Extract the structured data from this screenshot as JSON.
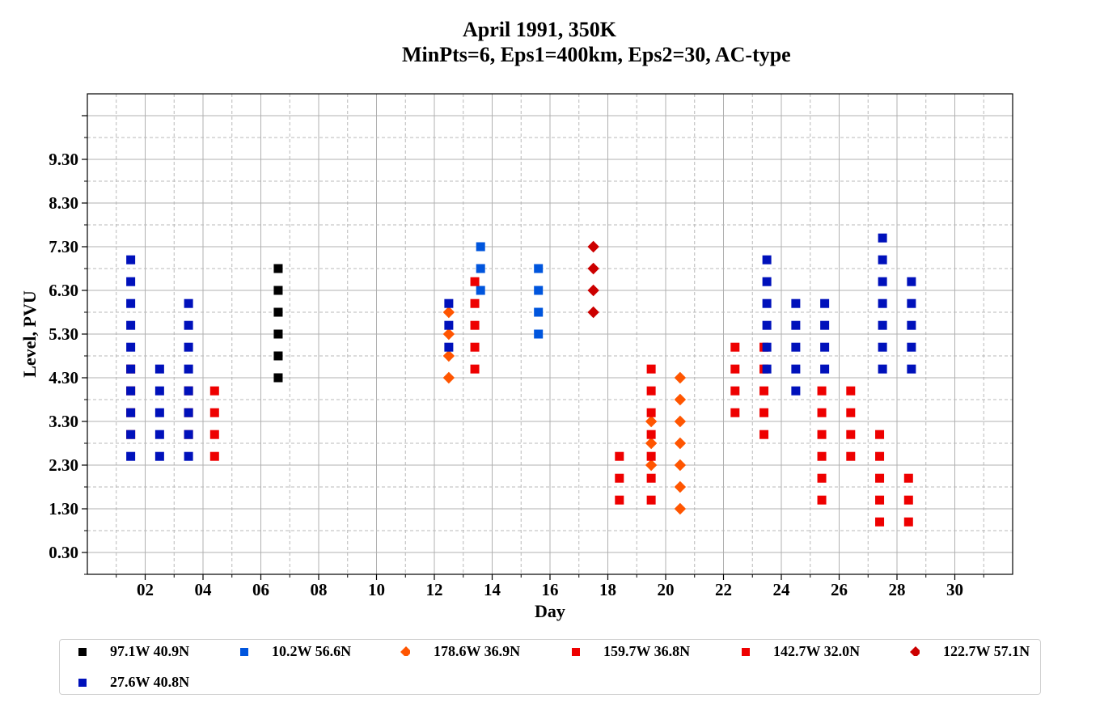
{
  "title_line1": "April 1991, 350K",
  "title_line2": "MinPts=6, Eps1=400km, Eps2=30, AC-type",
  "chart_data": {
    "type": "scatter",
    "xlabel": "Day",
    "ylabel": "Level, PVU",
    "xlim": [
      0,
      32
    ],
    "ylim": [
      -0.2,
      10.8
    ],
    "xticks": [
      2,
      4,
      6,
      8,
      10,
      12,
      14,
      16,
      18,
      20,
      22,
      24,
      26,
      28,
      30
    ],
    "xtick_labels": [
      "02",
      "04",
      "06",
      "08",
      "10",
      "12",
      "14",
      "16",
      "18",
      "20",
      "22",
      "24",
      "26",
      "28",
      "30"
    ],
    "yticks": [
      0.3,
      1.3,
      2.3,
      3.3,
      4.3,
      5.3,
      6.3,
      7.3,
      8.3,
      9.3
    ],
    "ytick_labels": [
      "0.30",
      "1.30",
      "2.30",
      "3.30",
      "4.30",
      "5.30",
      "6.30",
      "7.30",
      "8.30",
      "9.30"
    ],
    "grid": true,
    "legend_position": "bottom",
    "series": [
      {
        "name": "97.1W 40.9N",
        "marker": "square",
        "color": "#000000",
        "points": [
          [
            6.6,
            4.3
          ],
          [
            6.6,
            4.8
          ],
          [
            6.6,
            5.3
          ],
          [
            6.6,
            5.8
          ],
          [
            6.6,
            6.3
          ],
          [
            6.6,
            6.8
          ]
        ]
      },
      {
        "name": "10.2W 56.6N",
        "marker": "square",
        "color": "#0055dd",
        "points": [
          [
            13.6,
            6.3
          ],
          [
            13.6,
            6.8
          ],
          [
            13.6,
            7.3
          ],
          [
            15.6,
            5.3
          ],
          [
            15.6,
            5.8
          ],
          [
            15.6,
            6.3
          ],
          [
            15.6,
            6.8
          ]
        ]
      },
      {
        "name": "178.6W 36.9N",
        "marker": "diamond",
        "color": "#ff5500",
        "points": [
          [
            12.5,
            4.3
          ],
          [
            12.5,
            4.8
          ],
          [
            12.5,
            5.3
          ],
          [
            12.5,
            5.8
          ],
          [
            19.5,
            2.3
          ],
          [
            19.5,
            2.8
          ],
          [
            19.5,
            3.3
          ],
          [
            20.5,
            1.3
          ],
          [
            20.5,
            1.8
          ],
          [
            20.5,
            2.3
          ],
          [
            20.5,
            2.8
          ],
          [
            20.5,
            3.3
          ],
          [
            20.5,
            3.8
          ],
          [
            20.5,
            4.3
          ]
        ]
      },
      {
        "name": "159.7W 36.8N",
        "marker": "square",
        "color": "#ee0000",
        "points": [
          [
            1.5,
            3.0
          ],
          [
            1.5,
            3.5
          ],
          [
            1.5,
            4.0
          ],
          [
            1.5,
            4.5
          ],
          [
            3.5,
            3.0
          ],
          [
            3.5,
            3.5
          ],
          [
            3.5,
            4.0
          ],
          [
            4.4,
            2.5
          ],
          [
            4.4,
            3.0
          ],
          [
            4.4,
            3.5
          ],
          [
            4.4,
            4.0
          ],
          [
            13.4,
            4.5
          ],
          [
            13.4,
            5.0
          ],
          [
            13.4,
            5.5
          ],
          [
            13.4,
            6.0
          ],
          [
            13.4,
            6.5
          ],
          [
            18.4,
            1.5
          ],
          [
            18.4,
            2.0
          ],
          [
            18.4,
            2.5
          ],
          [
            19.5,
            1.5
          ],
          [
            19.5,
            2.0
          ],
          [
            19.5,
            2.5
          ],
          [
            19.5,
            3.0
          ],
          [
            19.5,
            3.5
          ],
          [
            19.5,
            4.0
          ],
          [
            19.5,
            4.5
          ],
          [
            22.4,
            3.5
          ],
          [
            22.4,
            4.0
          ],
          [
            22.4,
            4.5
          ],
          [
            22.4,
            5.0
          ]
        ]
      },
      {
        "name": "142.7W 32.0N",
        "marker": "square",
        "color": "#ee0000",
        "points": [
          [
            23.4,
            3.0
          ],
          [
            23.4,
            3.5
          ],
          [
            23.4,
            4.0
          ],
          [
            23.4,
            4.5
          ],
          [
            23.4,
            5.0
          ],
          [
            25.4,
            1.5
          ],
          [
            25.4,
            2.0
          ],
          [
            25.4,
            2.5
          ],
          [
            25.4,
            3.0
          ],
          [
            25.4,
            3.5
          ],
          [
            25.4,
            4.0
          ],
          [
            26.4,
            2.5
          ],
          [
            26.4,
            3.0
          ],
          [
            26.4,
            3.5
          ],
          [
            26.4,
            4.0
          ],
          [
            27.4,
            1.0
          ],
          [
            27.4,
            1.5
          ],
          [
            27.4,
            2.0
          ],
          [
            27.4,
            2.5
          ],
          [
            27.4,
            3.0
          ],
          [
            28.4,
            1.0
          ],
          [
            28.4,
            1.5
          ],
          [
            28.4,
            2.0
          ]
        ]
      },
      {
        "name": "122.7W 57.1N",
        "marker": "diamond",
        "color": "#cc0000",
        "points": [
          [
            17.5,
            5.8
          ],
          [
            17.5,
            6.3
          ],
          [
            17.5,
            6.8
          ],
          [
            17.5,
            7.3
          ]
        ]
      },
      {
        "name": "27.6W 40.8N",
        "marker": "square",
        "color": "#0011bb",
        "points": [
          [
            1.5,
            2.5
          ],
          [
            1.5,
            3.0
          ],
          [
            1.5,
            3.5
          ],
          [
            1.5,
            4.0
          ],
          [
            1.5,
            4.5
          ],
          [
            1.5,
            5.0
          ],
          [
            1.5,
            5.5
          ],
          [
            1.5,
            6.0
          ],
          [
            1.5,
            6.5
          ],
          [
            1.5,
            7.0
          ],
          [
            2.5,
            2.5
          ],
          [
            2.5,
            3.0
          ],
          [
            2.5,
            3.5
          ],
          [
            2.5,
            4.0
          ],
          [
            2.5,
            4.5
          ],
          [
            3.5,
            2.5
          ],
          [
            3.5,
            3.0
          ],
          [
            3.5,
            3.5
          ],
          [
            3.5,
            4.0
          ],
          [
            3.5,
            4.5
          ],
          [
            3.5,
            5.0
          ],
          [
            3.5,
            5.5
          ],
          [
            3.5,
            6.0
          ],
          [
            12.5,
            5.0
          ],
          [
            12.5,
            5.5
          ],
          [
            12.5,
            6.0
          ],
          [
            23.5,
            4.5
          ],
          [
            23.5,
            5.0
          ],
          [
            23.5,
            5.5
          ],
          [
            23.5,
            6.0
          ],
          [
            23.5,
            6.5
          ],
          [
            23.5,
            7.0
          ],
          [
            24.5,
            4.0
          ],
          [
            24.5,
            4.5
          ],
          [
            24.5,
            5.0
          ],
          [
            24.5,
            5.5
          ],
          [
            24.5,
            6.0
          ],
          [
            25.5,
            4.5
          ],
          [
            25.5,
            5.0
          ],
          [
            25.5,
            5.5
          ],
          [
            25.5,
            6.0
          ],
          [
            27.5,
            4.5
          ],
          [
            27.5,
            5.0
          ],
          [
            27.5,
            5.5
          ],
          [
            27.5,
            6.0
          ],
          [
            27.5,
            6.5
          ],
          [
            27.5,
            7.0
          ],
          [
            27.5,
            7.5
          ],
          [
            28.5,
            4.5
          ],
          [
            28.5,
            5.0
          ],
          [
            28.5,
            5.5
          ],
          [
            28.5,
            6.0
          ],
          [
            28.5,
            6.5
          ]
        ]
      }
    ]
  }
}
